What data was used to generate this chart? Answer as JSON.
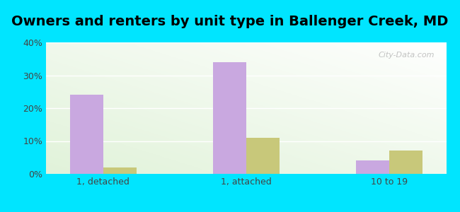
{
  "title": "Owners and renters by unit type in Ballenger Creek, MD",
  "categories": [
    "1, detached",
    "1, attached",
    "10 to 19"
  ],
  "owner_values": [
    24,
    34,
    4
  ],
  "renter_values": [
    2,
    11,
    7
  ],
  "owner_color": "#c9a8e0",
  "renter_color": "#c8c87a",
  "ylim": [
    0,
    40
  ],
  "yticks": [
    0,
    10,
    20,
    30,
    40
  ],
  "ytick_labels": [
    "0%",
    "10%",
    "20%",
    "30%",
    "40%"
  ],
  "bar_width": 0.35,
  "background_outer": "#00e5ff",
  "title_fontsize": 14,
  "watermark": "City-Data.com"
}
